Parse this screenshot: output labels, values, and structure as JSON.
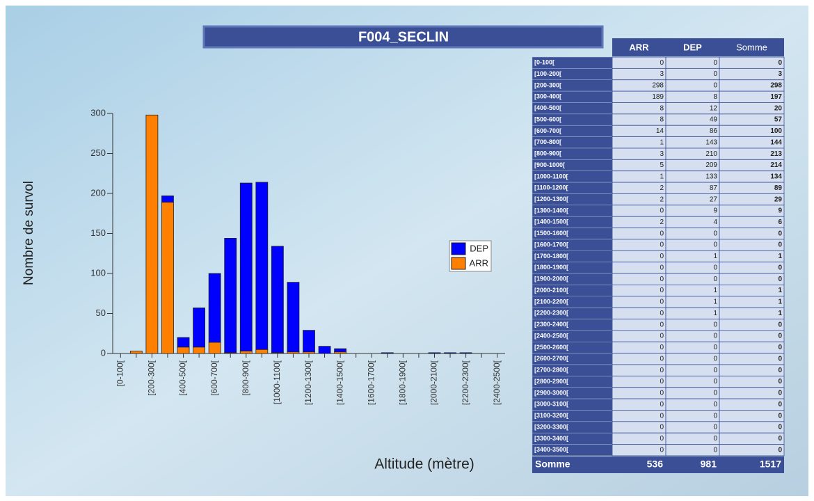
{
  "chart_data": {
    "type": "stacked_bar",
    "title": "F004_SECLIN",
    "y_label": "Nombre de survol",
    "x_label": "Altitude (mètre)",
    "categories": [
      "[0-100[",
      null,
      "[200-300[",
      null,
      "[400-500[",
      null,
      "[600-700[",
      null,
      "[800-900[",
      null,
      "[1000-1100[",
      null,
      "[1200-1300[",
      null,
      "[1400-1500[",
      null,
      "[1600-1700[",
      null,
      "[1800-1900[",
      null,
      "[2000-2100[",
      null,
      "[2200-2300[",
      null,
      "[2400-2500["
    ],
    "series": [
      {
        "name": "ARR",
        "color": "#ff8000",
        "values": [
          0,
          3,
          298,
          189,
          8,
          8,
          14,
          1,
          3,
          5,
          1,
          2,
          2,
          0,
          2,
          0,
          0,
          0,
          0,
          0,
          0,
          0,
          0,
          0,
          0
        ]
      },
      {
        "name": "DEP",
        "color": "#0000ff",
        "values": [
          0,
          0,
          0,
          8,
          12,
          49,
          86,
          143,
          210,
          209,
          133,
          87,
          27,
          9,
          4,
          0,
          0,
          1,
          0,
          0,
          1,
          1,
          1,
          0,
          0
        ]
      }
    ],
    "ylim": [
      0,
      300
    ],
    "yticks": [
      0,
      50,
      100,
      150,
      200,
      250,
      300
    ],
    "legend": "right"
  },
  "table": {
    "columns": [
      "ARR",
      "DEP",
      "Somme"
    ],
    "rows": [
      [
        "[0-100[",
        0,
        0,
        0
      ],
      [
        "[100-200[",
        3,
        0,
        3
      ],
      [
        "[200-300[",
        298,
        0,
        298
      ],
      [
        "[300-400[",
        189,
        8,
        197
      ],
      [
        "[400-500[",
        8,
        12,
        20
      ],
      [
        "[500-600[",
        8,
        49,
        57
      ],
      [
        "[600-700[",
        14,
        86,
        100
      ],
      [
        "[700-800[",
        1,
        143,
        144
      ],
      [
        "[800-900[",
        3,
        210,
        213
      ],
      [
        "[900-1000[",
        5,
        209,
        214
      ],
      [
        "[1000-1100[",
        1,
        133,
        134
      ],
      [
        "[1100-1200[",
        2,
        87,
        89
      ],
      [
        "[1200-1300[",
        2,
        27,
        29
      ],
      [
        "[1300-1400[",
        0,
        9,
        9
      ],
      [
        "[1400-1500[",
        2,
        4,
        6
      ],
      [
        "[1500-1600[",
        0,
        0,
        0
      ],
      [
        "[1600-1700[",
        0,
        0,
        0
      ],
      [
        "[1700-1800[",
        0,
        1,
        1
      ],
      [
        "[1800-1900[",
        0,
        0,
        0
      ],
      [
        "[1900-2000[",
        0,
        0,
        0
      ],
      [
        "[2000-2100[",
        0,
        1,
        1
      ],
      [
        "[2100-2200[",
        0,
        1,
        1
      ],
      [
        "[2200-2300[",
        0,
        1,
        1
      ],
      [
        "[2300-2400[",
        0,
        0,
        0
      ],
      [
        "[2400-2500[",
        0,
        0,
        0
      ],
      [
        "[2500-2600[",
        0,
        0,
        0
      ],
      [
        "[2600-2700[",
        0,
        0,
        0
      ],
      [
        "[2700-2800[",
        0,
        0,
        0
      ],
      [
        "[2800-2900[",
        0,
        0,
        0
      ],
      [
        "[2900-3000[",
        0,
        0,
        0
      ],
      [
        "[3000-3100[",
        0,
        0,
        0
      ],
      [
        "[3100-3200[",
        0,
        0,
        0
      ],
      [
        "[3200-3300[",
        0,
        0,
        0
      ],
      [
        "[3300-3400[",
        0,
        0,
        0
      ],
      [
        "[3400-3500[",
        0,
        0,
        0
      ]
    ],
    "total": [
      "Somme",
      536,
      981,
      1517
    ]
  }
}
